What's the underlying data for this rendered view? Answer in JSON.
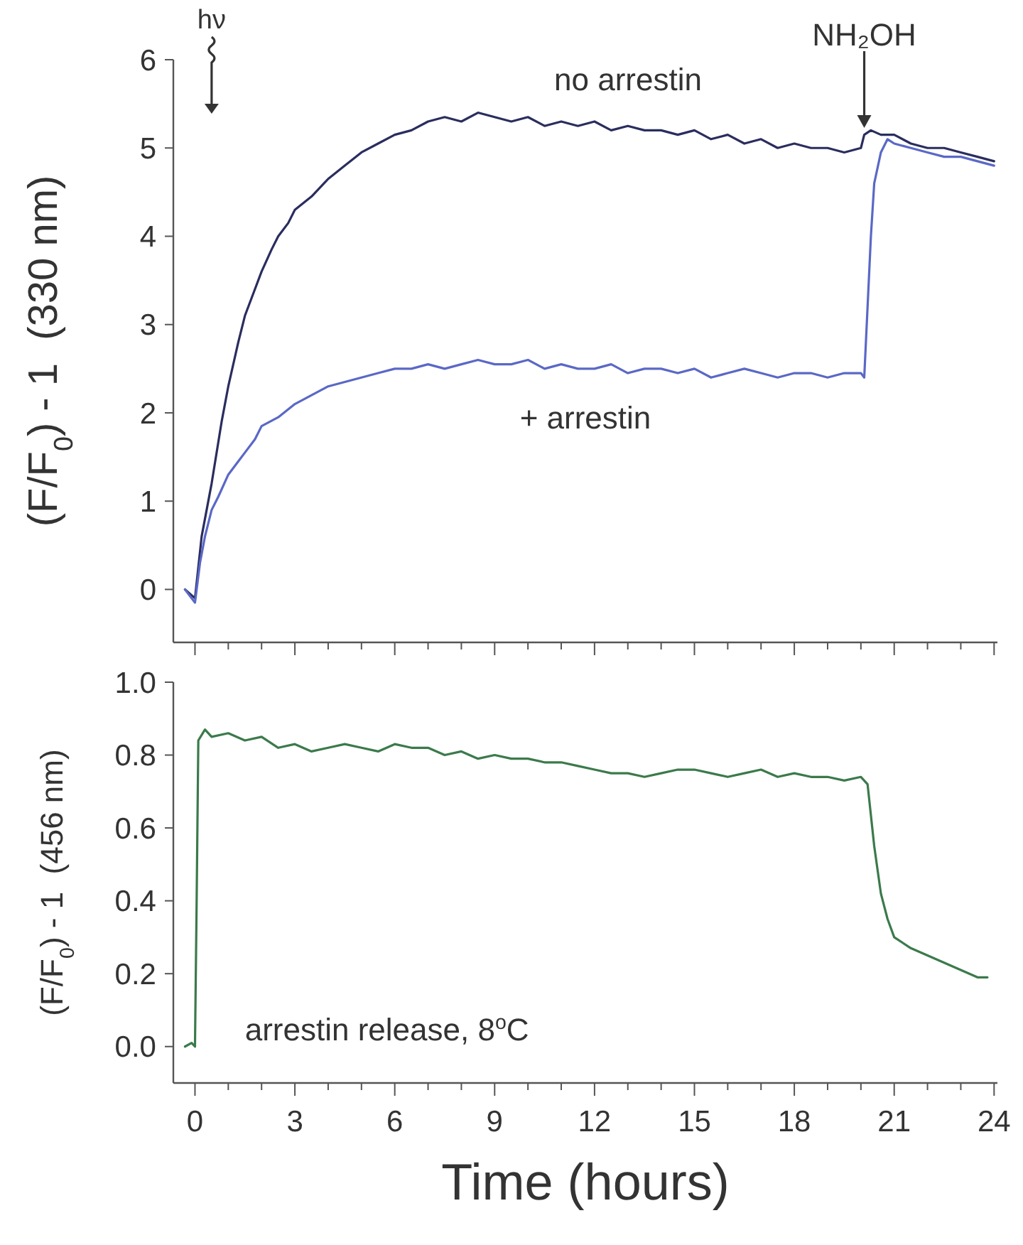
{
  "chart_data": [
    {
      "type": "line",
      "ylabel": "(F/F$_{0}$) - 1  (330 nm)",
      "xlim": [
        -0.65,
        24.1
      ],
      "ylim": [
        -0.6,
        6
      ],
      "xticks": [
        0,
        {
          "value": 1,
          "label": null
        },
        {
          "value": 2,
          "label": null
        },
        3,
        {
          "value": 4,
          "label": null
        },
        {
          "value": 5,
          "label": null
        },
        6,
        {
          "value": 7,
          "label": null
        },
        {
          "value": 8,
          "label": null
        },
        9,
        {
          "value": 10,
          "label": null
        },
        {
          "value": 11,
          "label": null
        },
        12,
        {
          "value": 13,
          "label": null
        },
        {
          "value": 14,
          "label": null
        },
        15,
        {
          "value": 16,
          "label": null
        },
        {
          "value": 17,
          "label": null
        },
        18,
        {
          "value": 19,
          "label": null
        },
        {
          "value": 20,
          "label": null
        },
        21,
        {
          "value": 22,
          "label": null
        },
        {
          "value": 23,
          "label": null
        },
        24
      ],
      "yticks": [
        0,
        1,
        2,
        3,
        4,
        5,
        6
      ],
      "tick_labels": "y",
      "grid": false,
      "line_style": "solid",
      "annotations": [
        "hν",
        "NH₂OH"
      ],
      "series": [
        {
          "name": "no arrestin",
          "color": "#2a2d5e",
          "x": [
            -0.3,
            0,
            0.2,
            0.5,
            0.8,
            1,
            1.3,
            1.5,
            1.8,
            2,
            2.3,
            2.5,
            2.8,
            3,
            3.5,
            4,
            4.5,
            5,
            5.5,
            6,
            6.5,
            7,
            7.5,
            8,
            8.5,
            9,
            9.5,
            10,
            10.5,
            11,
            11.5,
            12,
            12.5,
            13,
            13.5,
            14,
            14.5,
            15,
            15.5,
            16,
            16.5,
            17,
            17.5,
            18,
            18.5,
            19,
            19.5,
            20,
            20.1,
            20.3,
            20.6,
            21,
            21.5,
            22,
            22.5,
            23,
            23.5,
            24
          ],
          "values": [
            0,
            -0.1,
            0.6,
            1.2,
            1.9,
            2.3,
            2.8,
            3.1,
            3.4,
            3.6,
            3.85,
            4.0,
            4.15,
            4.3,
            4.45,
            4.65,
            4.8,
            4.95,
            5.05,
            5.15,
            5.2,
            5.3,
            5.35,
            5.3,
            5.4,
            5.35,
            5.3,
            5.35,
            5.25,
            5.3,
            5.25,
            5.3,
            5.2,
            5.25,
            5.2,
            5.2,
            5.15,
            5.2,
            5.1,
            5.15,
            5.05,
            5.1,
            5.0,
            5.05,
            5.0,
            5.0,
            4.95,
            5.0,
            5.15,
            5.2,
            5.15,
            5.15,
            5.05,
            5.0,
            5.0,
            4.95,
            4.9,
            4.85
          ]
        },
        {
          "name": "+ arrestin",
          "color": "#5a68c6",
          "x": [
            -0.3,
            0,
            0.15,
            0.3,
            0.5,
            0.7,
            1,
            1.3,
            1.5,
            1.8,
            2,
            2.5,
            3,
            3.5,
            4,
            4.5,
            5,
            5.5,
            6,
            6.5,
            7,
            7.5,
            8,
            8.5,
            9,
            9.5,
            10,
            10.5,
            11,
            11.5,
            12,
            12.5,
            13,
            13.5,
            14,
            14.5,
            15,
            15.5,
            16,
            16.5,
            17,
            17.5,
            18,
            18.5,
            19,
            19.5,
            20,
            20.1,
            20.2,
            20.3,
            20.4,
            20.6,
            20.8,
            21,
            21.5,
            22,
            22.5,
            23,
            23.5,
            24
          ],
          "values": [
            0,
            -0.15,
            0.3,
            0.6,
            0.9,
            1.05,
            1.3,
            1.45,
            1.55,
            1.7,
            1.85,
            1.95,
            2.1,
            2.2,
            2.3,
            2.35,
            2.4,
            2.45,
            2.5,
            2.5,
            2.55,
            2.5,
            2.55,
            2.6,
            2.55,
            2.55,
            2.6,
            2.5,
            2.55,
            2.5,
            2.5,
            2.55,
            2.45,
            2.5,
            2.5,
            2.45,
            2.5,
            2.4,
            2.45,
            2.5,
            2.45,
            2.4,
            2.45,
            2.45,
            2.4,
            2.45,
            2.45,
            2.4,
            3.2,
            4.0,
            4.6,
            4.95,
            5.1,
            5.05,
            5.0,
            4.95,
            4.9,
            4.9,
            4.85,
            4.8
          ]
        }
      ]
    },
    {
      "type": "line",
      "ylabel": "(F/F$_{0}$) - 1  (456 nm)",
      "xlabel": "Time (hours)",
      "xlim": [
        -0.65,
        24.1
      ],
      "ylim": [
        -0.1,
        1.0
      ],
      "xticks": [
        0,
        {
          "value": 1,
          "label": null
        },
        {
          "value": 2,
          "label": null
        },
        3,
        {
          "value": 4,
          "label": null
        },
        {
          "value": 5,
          "label": null
        },
        6,
        {
          "value": 7,
          "label": null
        },
        {
          "value": 8,
          "label": null
        },
        9,
        {
          "value": 10,
          "label": null
        },
        {
          "value": 11,
          "label": null
        },
        12,
        {
          "value": 13,
          "label": null
        },
        {
          "value": 14,
          "label": null
        },
        15,
        {
          "value": 16,
          "label": null
        },
        {
          "value": 17,
          "label": null
        },
        18,
        {
          "value": 19,
          "label": null
        },
        {
          "value": 20,
          "label": null
        },
        21,
        {
          "value": 22,
          "label": null
        },
        {
          "value": 23,
          "label": null
        },
        24
      ],
      "yticks": [
        {
          "value": 0,
          "label": "0.0"
        },
        0.2,
        0.4,
        0.6,
        0.8,
        {
          "value": 1,
          "label": "1.0"
        }
      ],
      "grid": false,
      "line_style": "solid",
      "annotations": [
        "arrestin release, 8$^{o}$C"
      ],
      "series": [
        {
          "color": "#3b7a4b",
          "x": [
            -0.3,
            -0.1,
            0,
            0.05,
            0.1,
            0.3,
            0.5,
            1,
            1.5,
            2,
            2.5,
            3,
            3.5,
            4,
            4.5,
            5,
            5.5,
            6,
            6.5,
            7,
            7.5,
            8,
            8.5,
            9,
            9.5,
            10,
            10.5,
            11,
            11.5,
            12,
            12.5,
            13,
            13.5,
            14,
            14.5,
            15,
            15.5,
            16,
            16.5,
            17,
            17.5,
            18,
            18.5,
            19,
            19.5,
            20,
            20.2,
            20.4,
            20.6,
            20.8,
            21,
            21.5,
            22,
            22.5,
            23,
            23.5,
            23.8
          ],
          "values": [
            0.0,
            0.01,
            0.0,
            0.4,
            0.84,
            0.87,
            0.85,
            0.86,
            0.84,
            0.85,
            0.82,
            0.83,
            0.81,
            0.82,
            0.83,
            0.82,
            0.81,
            0.83,
            0.82,
            0.82,
            0.8,
            0.81,
            0.79,
            0.8,
            0.79,
            0.79,
            0.78,
            0.78,
            0.77,
            0.76,
            0.75,
            0.75,
            0.74,
            0.75,
            0.76,
            0.76,
            0.75,
            0.74,
            0.75,
            0.76,
            0.74,
            0.75,
            0.74,
            0.74,
            0.73,
            0.74,
            0.72,
            0.55,
            0.42,
            0.35,
            0.3,
            0.27,
            0.25,
            0.23,
            0.21,
            0.19,
            0.19
          ]
        }
      ]
    }
  ]
}
